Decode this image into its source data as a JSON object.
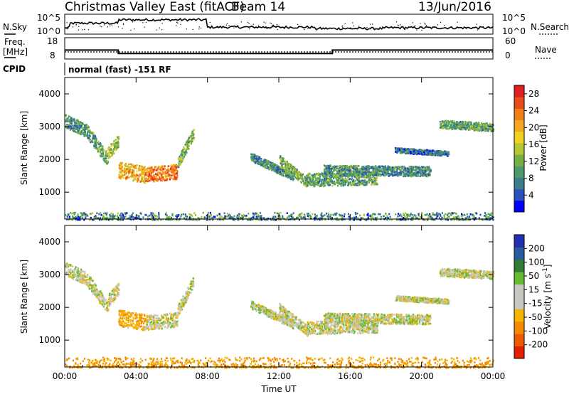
{
  "header": {
    "title": "Christmas Valley East (fitACF)",
    "beam": "Beam 14",
    "date": "13/Jun/2016"
  },
  "noise_panel": {
    "left_label": "N.Sky",
    "right_label": "N.Search",
    "left_ticks": [
      "10^5",
      "10^0"
    ],
    "right_ticks": [
      "10^5",
      "10^0"
    ]
  },
  "freq_panel": {
    "left_label_1": "Freq.",
    "left_label_2": "[MHz]",
    "right_label": "Nave",
    "left_ticks": [
      "18",
      "8"
    ],
    "right_ticks": [
      "60",
      "0"
    ],
    "freq_levels": [
      {
        "t_start": 0.0,
        "t_end": 3.0,
        "mhz": 12.2
      },
      {
        "t_start": 3.0,
        "t_end": 15.0,
        "mhz": 10.6
      },
      {
        "t_start": 15.0,
        "t_end": 24.0,
        "mhz": 12.2
      }
    ],
    "nave_level": 20
  },
  "cpid": {
    "label": "CPID",
    "text": "normal (fast) -151 RF"
  },
  "chart_data": [
    {
      "type": "heatmap",
      "name": "power",
      "ylabel": "Slant Range [km]",
      "y_ticks": [
        "1000",
        "2000",
        "3000",
        "4000"
      ],
      "ylim": [
        180,
        4500
      ],
      "xlim": [
        0,
        24
      ],
      "colorbar": {
        "label": "Power [dB]",
        "ticks": [
          "4",
          "8",
          "12",
          "16",
          "20",
          "24",
          "28"
        ],
        "range": [
          0,
          30
        ],
        "colors": [
          "#0000ff",
          "#2a52be",
          "#3a7d8c",
          "#4a9a6a",
          "#76b041",
          "#b5c832",
          "#f0d020",
          "#f5a623",
          "#f07f1a",
          "#e84c1a",
          "#e02020"
        ]
      },
      "echo_bands": [
        {
          "t_start": 0.0,
          "t_end": 1.2,
          "r_start": 3200,
          "r_end": 2900,
          "power": 8,
          "width": 400
        },
        {
          "t_start": 1.2,
          "t_end": 2.4,
          "r_start": 2900,
          "r_end": 2000,
          "power": 10,
          "width": 400
        },
        {
          "t_start": 2.4,
          "t_end": 3.0,
          "r_start": 2200,
          "r_end": 2600,
          "power": 14,
          "width": 400
        },
        {
          "t_start": 3.0,
          "t_end": 4.5,
          "r_start": 1700,
          "r_end": 1550,
          "power": 20,
          "width": 500
        },
        {
          "t_start": 4.5,
          "t_end": 6.3,
          "r_start": 1550,
          "r_end": 1650,
          "power": 24,
          "width": 450
        },
        {
          "t_start": 6.3,
          "t_end": 7.2,
          "r_start": 1900,
          "r_end": 2800,
          "power": 12,
          "width": 350
        },
        {
          "t_start": 10.4,
          "t_end": 12.8,
          "r_start": 2100,
          "r_end": 1500,
          "power": 8,
          "width": 250
        },
        {
          "t_start": 12.0,
          "t_end": 13.6,
          "r_start": 2000,
          "r_end": 1300,
          "power": 12,
          "width": 300
        },
        {
          "t_start": 13.5,
          "t_end": 17.5,
          "r_start": 1400,
          "r_end": 1450,
          "power": 10,
          "width": 400
        },
        {
          "t_start": 14.5,
          "t_end": 20.5,
          "r_start": 1700,
          "r_end": 1650,
          "power": 8,
          "width": 300
        },
        {
          "t_start": 18.5,
          "t_end": 21.5,
          "r_start": 2300,
          "r_end": 2200,
          "power": 6,
          "width": 150
        },
        {
          "t_start": 21.0,
          "t_end": 24.0,
          "r_start": 3100,
          "r_end": 3000,
          "power": 10,
          "width": 250
        }
      ],
      "ground_band": {
        "t_start": 0.0,
        "t_end": 24.0,
        "r_start": 180,
        "r_end": 400,
        "power": 8
      }
    },
    {
      "type": "heatmap",
      "name": "velocity",
      "ylabel": "Slant Range [km]",
      "y_ticks": [
        "1000",
        "2000",
        "3000",
        "4000"
      ],
      "ylim": [
        180,
        4500
      ],
      "xlim": [
        0,
        24
      ],
      "xlabel": "Time UT",
      "x_ticks": [
        "00:00",
        "04:00",
        "08:00",
        "12:00",
        "16:00",
        "20:00",
        "00:00"
      ],
      "colorbar": {
        "label": "Velocity [m s^-1]",
        "ticks": [
          "200",
          "100",
          "50",
          "15",
          "-15",
          "-50",
          "-100",
          "-200"
        ],
        "colors": [
          "#2030b0",
          "#2a5aa0",
          "#2e7d32",
          "#66bb33",
          "#c8c8c0",
          "#c8c8c0",
          "#f5b400",
          "#f58a00",
          "#ee5a00",
          "#e02000"
        ]
      },
      "echo_bands": [
        {
          "t_start": 0.0,
          "t_end": 1.2,
          "r_start": 3200,
          "r_end": 2900,
          "velocity": 0,
          "width": 400
        },
        {
          "t_start": 1.2,
          "t_end": 2.4,
          "r_start": 2900,
          "r_end": 2000,
          "velocity": 0,
          "width": 400
        },
        {
          "t_start": 2.4,
          "t_end": 3.0,
          "r_start": 2200,
          "r_end": 2600,
          "velocity": 0,
          "width": 400
        },
        {
          "t_start": 3.0,
          "t_end": 4.5,
          "r_start": 1700,
          "r_end": 1550,
          "velocity": -40,
          "width": 500
        },
        {
          "t_start": 4.5,
          "t_end": 6.3,
          "r_start": 1550,
          "r_end": 1650,
          "velocity": 0,
          "width": 450
        },
        {
          "t_start": 6.3,
          "t_end": 7.2,
          "r_start": 1900,
          "r_end": 2800,
          "velocity": 0,
          "width": 350
        },
        {
          "t_start": 10.4,
          "t_end": 12.8,
          "r_start": 2100,
          "r_end": 1500,
          "velocity": 0,
          "width": 250
        },
        {
          "t_start": 12.0,
          "t_end": 13.6,
          "r_start": 2000,
          "r_end": 1300,
          "velocity": 0,
          "width": 300
        },
        {
          "t_start": 13.5,
          "t_end": 17.5,
          "r_start": 1400,
          "r_end": 1450,
          "velocity": 0,
          "width": 400
        },
        {
          "t_start": 14.5,
          "t_end": 20.5,
          "r_start": 1700,
          "r_end": 1650,
          "velocity": 0,
          "width": 300
        },
        {
          "t_start": 18.5,
          "t_end": 21.5,
          "r_start": 2300,
          "r_end": 2200,
          "velocity": 0,
          "width": 150
        },
        {
          "t_start": 21.0,
          "t_end": 24.0,
          "r_start": 3100,
          "r_end": 3000,
          "velocity": 0,
          "width": 250
        }
      ],
      "ground_band": {
        "t_start": 0.0,
        "t_end": 24.0,
        "r_start": 180,
        "r_end": 500,
        "velocity": -60
      }
    }
  ]
}
